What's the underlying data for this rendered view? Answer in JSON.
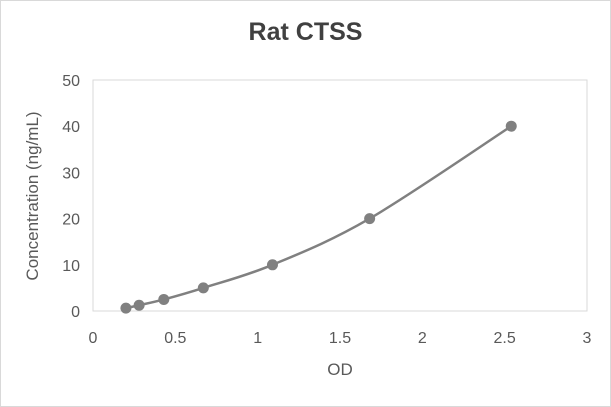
{
  "chart_data": {
    "type": "scatter",
    "title": "Rat CTSS",
    "xlabel": "OD",
    "ylabel": "Concentration (ng/mL)",
    "xlim": [
      0,
      3
    ],
    "ylim": [
      0,
      50
    ],
    "xticks": [
      "0",
      "0.5",
      "1",
      "1.5",
      "2",
      "2.5",
      "3"
    ],
    "yticks": [
      "0",
      "10",
      "20",
      "30",
      "40",
      "50"
    ],
    "grid": false,
    "legend": "none",
    "series": [
      {
        "color": "#808080",
        "smooth": true,
        "markers": true,
        "x": [
          0.2,
          0.28,
          0.43,
          0.67,
          1.09,
          1.68,
          2.54
        ],
        "y": [
          0.625,
          1.25,
          2.5,
          5,
          10,
          20,
          40
        ]
      }
    ]
  }
}
